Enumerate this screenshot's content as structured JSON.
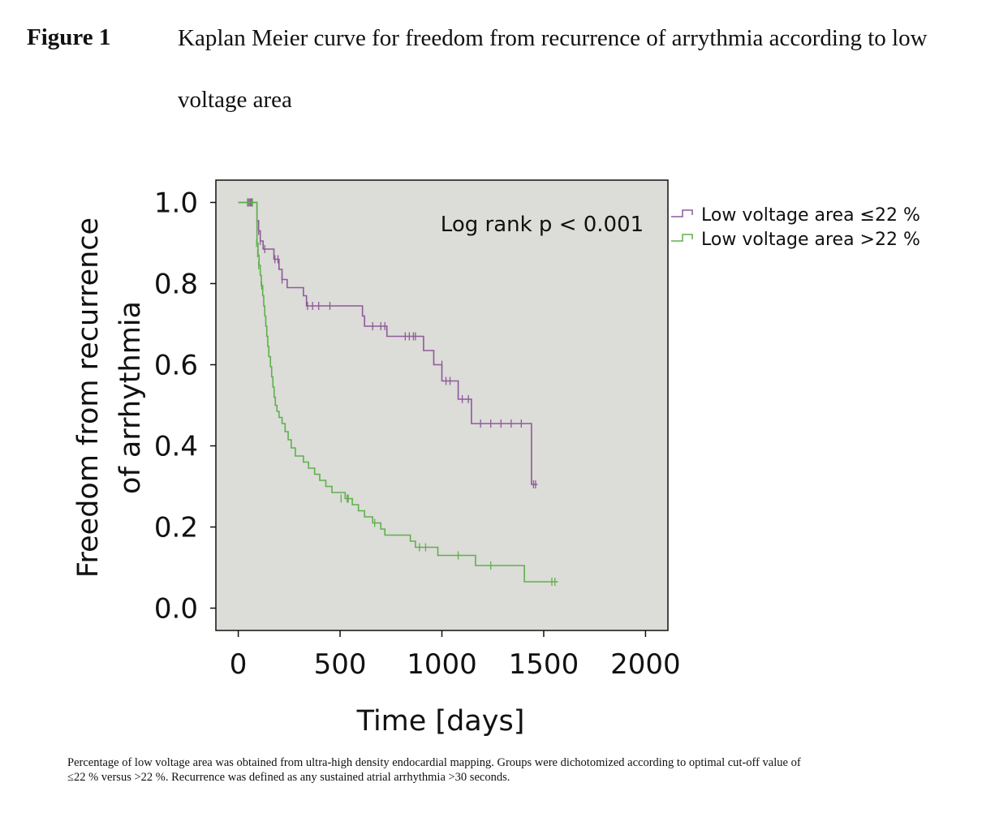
{
  "figure_label": "Figure 1",
  "figure_title": "Kaplan Meier curve for freedom from recurrence of arrythmia according to low voltage area",
  "caption": "Percentage of low voltage area was obtained from ultra-high density endocardial mapping. Groups were dichotomized according to optimal cut-off value of ≤22 % versus >22 %. Recurrence was defined as any sustained atrial arrhythmia >30 seconds.",
  "chart_data": {
    "type": "line",
    "subtype": "kaplan-meier step",
    "xlabel": "Time [days]",
    "ylabel_line1": "Freedom from recurrence",
    "ylabel_line2": "of arrhythmia",
    "xlim": [
      -110,
      2110
    ],
    "ylim": [
      -0.055,
      1.055
    ],
    "xticks": [
      0,
      500,
      1000,
      1500,
      2000
    ],
    "xtick_labels": [
      "0",
      "500",
      "1000",
      "1500",
      "2000"
    ],
    "yticks": [
      0.0,
      0.2,
      0.4,
      0.6,
      0.8,
      1.0
    ],
    "ytick_labels": [
      "0.0",
      "0.2",
      "0.4",
      "0.6",
      "0.8",
      "1.0"
    ],
    "annotation": "Log rank p < 0.001",
    "background": "#dcdcd8",
    "legend_position": "outside-right-top",
    "series": [
      {
        "name": "Low voltage area ≤22 %",
        "color": "#8e5a99",
        "steps": [
          [
            0,
            1.0
          ],
          [
            92,
            0.955
          ],
          [
            100,
            0.93
          ],
          [
            108,
            0.905
          ],
          [
            122,
            0.885
          ],
          [
            175,
            0.86
          ],
          [
            200,
            0.835
          ],
          [
            215,
            0.81
          ],
          [
            240,
            0.79
          ],
          [
            320,
            0.77
          ],
          [
            335,
            0.745
          ],
          [
            610,
            0.72
          ],
          [
            620,
            0.695
          ],
          [
            730,
            0.67
          ],
          [
            910,
            0.635
          ],
          [
            960,
            0.6
          ],
          [
            1000,
            0.56
          ],
          [
            1080,
            0.515
          ],
          [
            1145,
            0.455
          ],
          [
            1440,
            0.305
          ]
        ],
        "end_x": 1470,
        "censored": [
          [
            48,
            1.0
          ],
          [
            54,
            1.0
          ],
          [
            60,
            1.0
          ],
          [
            65,
            1.0
          ],
          [
            100,
            0.93
          ],
          [
            108,
            0.905
          ],
          [
            130,
            0.885
          ],
          [
            180,
            0.86
          ],
          [
            195,
            0.86
          ],
          [
            215,
            0.81
          ],
          [
            340,
            0.745
          ],
          [
            365,
            0.745
          ],
          [
            395,
            0.745
          ],
          [
            450,
            0.745
          ],
          [
            660,
            0.695
          ],
          [
            700,
            0.695
          ],
          [
            720,
            0.695
          ],
          [
            820,
            0.67
          ],
          [
            840,
            0.67
          ],
          [
            860,
            0.67
          ],
          [
            870,
            0.67
          ],
          [
            1000,
            0.6
          ],
          [
            1020,
            0.56
          ],
          [
            1040,
            0.56
          ],
          [
            1100,
            0.515
          ],
          [
            1130,
            0.515
          ],
          [
            1190,
            0.455
          ],
          [
            1240,
            0.455
          ],
          [
            1290,
            0.455
          ],
          [
            1340,
            0.455
          ],
          [
            1390,
            0.455
          ],
          [
            1450,
            0.305
          ],
          [
            1460,
            0.305
          ]
        ]
      },
      {
        "name": "Low voltage area >22 %",
        "color": "#5eb04c",
        "steps": [
          [
            0,
            1.0
          ],
          [
            92,
            0.9
          ],
          [
            97,
            0.87
          ],
          [
            102,
            0.845
          ],
          [
            108,
            0.82
          ],
          [
            113,
            0.795
          ],
          [
            120,
            0.77
          ],
          [
            125,
            0.745
          ],
          [
            130,
            0.72
          ],
          [
            135,
            0.695
          ],
          [
            140,
            0.67
          ],
          [
            145,
            0.645
          ],
          [
            150,
            0.62
          ],
          [
            158,
            0.595
          ],
          [
            164,
            0.57
          ],
          [
            170,
            0.545
          ],
          [
            176,
            0.52
          ],
          [
            182,
            0.5
          ],
          [
            190,
            0.485
          ],
          [
            200,
            0.47
          ],
          [
            215,
            0.455
          ],
          [
            230,
            0.435
          ],
          [
            245,
            0.415
          ],
          [
            260,
            0.395
          ],
          [
            280,
            0.375
          ],
          [
            320,
            0.36
          ],
          [
            345,
            0.345
          ],
          [
            375,
            0.33
          ],
          [
            400,
            0.315
          ],
          [
            430,
            0.3
          ],
          [
            460,
            0.285
          ],
          [
            525,
            0.27
          ],
          [
            560,
            0.255
          ],
          [
            590,
            0.24
          ],
          [
            620,
            0.225
          ],
          [
            660,
            0.21
          ],
          [
            700,
            0.195
          ],
          [
            720,
            0.18
          ],
          [
            845,
            0.165
          ],
          [
            870,
            0.15
          ],
          [
            980,
            0.13
          ],
          [
            1165,
            0.105
          ],
          [
            1405,
            0.065
          ]
        ],
        "end_x": 1570,
        "censored": [
          [
            45,
            1.0
          ],
          [
            70,
            1.0
          ],
          [
            90,
            0.9
          ],
          [
            95,
            0.875
          ],
          [
            100,
            0.845
          ],
          [
            115,
            0.795
          ],
          [
            505,
            0.27
          ],
          [
            535,
            0.27
          ],
          [
            540,
            0.27
          ],
          [
            670,
            0.21
          ],
          [
            890,
            0.15
          ],
          [
            920,
            0.15
          ],
          [
            1080,
            0.13
          ],
          [
            1240,
            0.105
          ],
          [
            1540,
            0.065
          ],
          [
            1555,
            0.065
          ]
        ]
      }
    ]
  }
}
